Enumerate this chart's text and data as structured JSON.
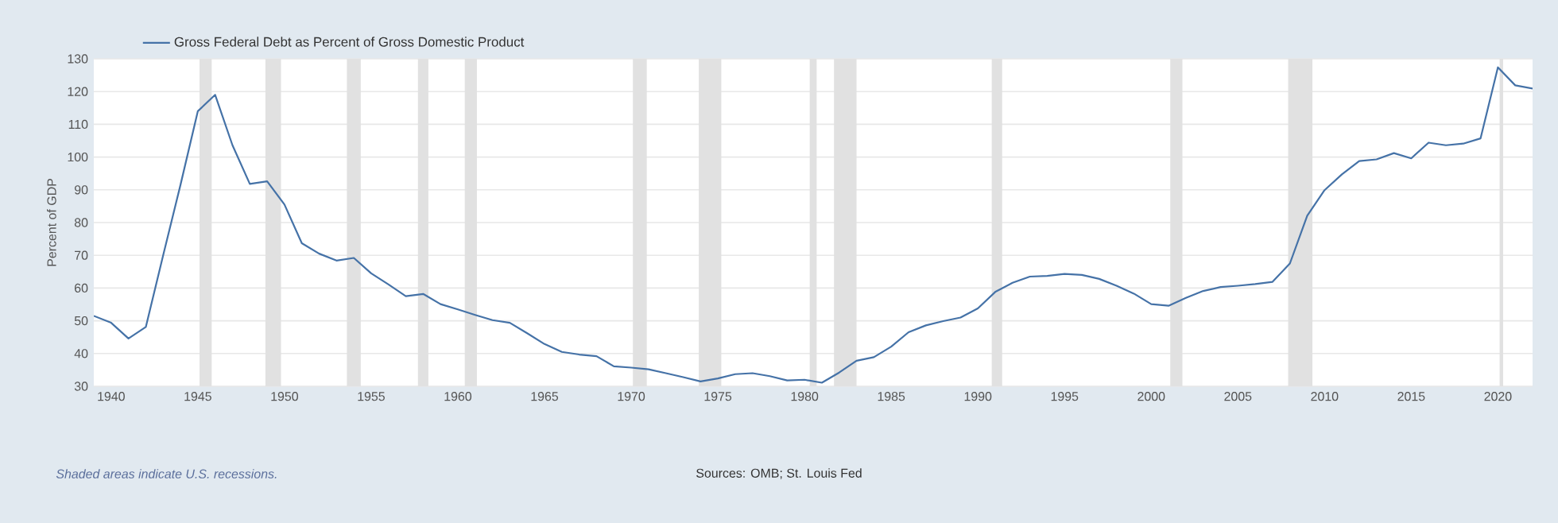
{
  "chart_data": {
    "type": "line",
    "ylabel": "Percent of GDP",
    "x": [
      1939,
      1940,
      1941,
      1942,
      1943,
      1944,
      1945,
      1946,
      1947,
      1948,
      1949,
      1950,
      1951,
      1952,
      1953,
      1954,
      1955,
      1956,
      1957,
      1958,
      1959,
      1960,
      1961,
      1962,
      1963,
      1964,
      1965,
      1966,
      1967,
      1968,
      1969,
      1970,
      1971,
      1972,
      1973,
      1974,
      1975,
      1976,
      1977,
      1978,
      1979,
      1980,
      1981,
      1982,
      1983,
      1984,
      1985,
      1986,
      1987,
      1988,
      1989,
      1990,
      1991,
      1992,
      1993,
      1994,
      1995,
      1996,
      1997,
      1998,
      1999,
      2000,
      2001,
      2002,
      2003,
      2004,
      2005,
      2006,
      2007,
      2008,
      2009,
      2010,
      2011,
      2012,
      2013,
      2014,
      2015,
      2016,
      2017,
      2018,
      2019,
      2020,
      2021,
      2022
    ],
    "series": [
      {
        "name": "Gross Federal Debt as Percent of Gross Domestic Product",
        "color": "#4572a7",
        "values": [
          51.5,
          49.4,
          44.6,
          48.1,
          70,
          91.5,
          114,
          119,
          103.6,
          91.8,
          92.6,
          85.5,
          73.7,
          70.5,
          68.4,
          69.2,
          64.5,
          61.1,
          57.5,
          58.2,
          55.1,
          53.5,
          51.8,
          50.2,
          49.4,
          46.2,
          42.9,
          40.5,
          39.7,
          39.2,
          36.1,
          35.7,
          35.2,
          34,
          32.8,
          31.5,
          32.4,
          33.7,
          34,
          33.1,
          31.8,
          32,
          31.1,
          34.2,
          37.8,
          38.9,
          42.1,
          46.5,
          48.6,
          49.9,
          51,
          53.8,
          58.8,
          61.6,
          63.5,
          63.7,
          64.3,
          64,
          62.8,
          60.7,
          58.3,
          55.1,
          54.6,
          57,
          59.1,
          60.3,
          60.7,
          61.2,
          61.9,
          67.5,
          82.1,
          89.9,
          94.7,
          98.8,
          99.3,
          101.2,
          99.6,
          104.4,
          103.6,
          104.1,
          105.7,
          127.4,
          121.9,
          120.9
        ]
      }
    ],
    "xlim": [
      1939,
      2022
    ],
    "ylim": [
      30,
      130
    ],
    "xticks": [
      1940,
      1945,
      1950,
      1955,
      1960,
      1965,
      1970,
      1975,
      1980,
      1985,
      1990,
      1995,
      2000,
      2005,
      2010,
      2015,
      2020
    ],
    "yticks": [
      30,
      40,
      50,
      60,
      70,
      80,
      90,
      100,
      110,
      120,
      130
    ],
    "grid": "y",
    "legend": "top left",
    "bands": [
      {
        "axis": "x",
        "from": 1945.1,
        "to": 1945.8,
        "color": "#e1e1e1"
      },
      {
        "axis": "x",
        "from": 1948.9,
        "to": 1949.8,
        "color": "#e1e1e1"
      },
      {
        "axis": "x",
        "from": 1953.6,
        "to": 1954.4,
        "color": "#e1e1e1"
      },
      {
        "axis": "x",
        "from": 1957.7,
        "to": 1958.3,
        "color": "#e1e1e1"
      },
      {
        "axis": "x",
        "from": 1960.4,
        "to": 1961.1,
        "color": "#e1e1e1"
      },
      {
        "axis": "x",
        "from": 1970.1,
        "to": 1970.9,
        "color": "#e1e1e1"
      },
      {
        "axis": "x",
        "from": 1973.9,
        "to": 1975.2,
        "color": "#e1e1e1"
      },
      {
        "axis": "x",
        "from": 1980.3,
        "to": 1980.7,
        "color": "#e1e1e1"
      },
      {
        "axis": "x",
        "from": 1981.7,
        "to": 1983.0,
        "color": "#e1e1e1"
      },
      {
        "axis": "x",
        "from": 1990.8,
        "to": 1991.4,
        "color": "#e1e1e1"
      },
      {
        "axis": "x",
        "from": 2001.1,
        "to": 2001.8,
        "color": "#e1e1e1"
      },
      {
        "axis": "x",
        "from": 2007.9,
        "to": 2009.3,
        "color": "#e1e1e1"
      },
      {
        "axis": "x",
        "from": 2020.1,
        "to": 2020.3,
        "color": "#e1e1e1"
      }
    ],
    "annotations": [
      "Shaded areas indicate U.S. recessions.",
      "Sources: OMB; St. Louis Fed"
    ]
  }
}
